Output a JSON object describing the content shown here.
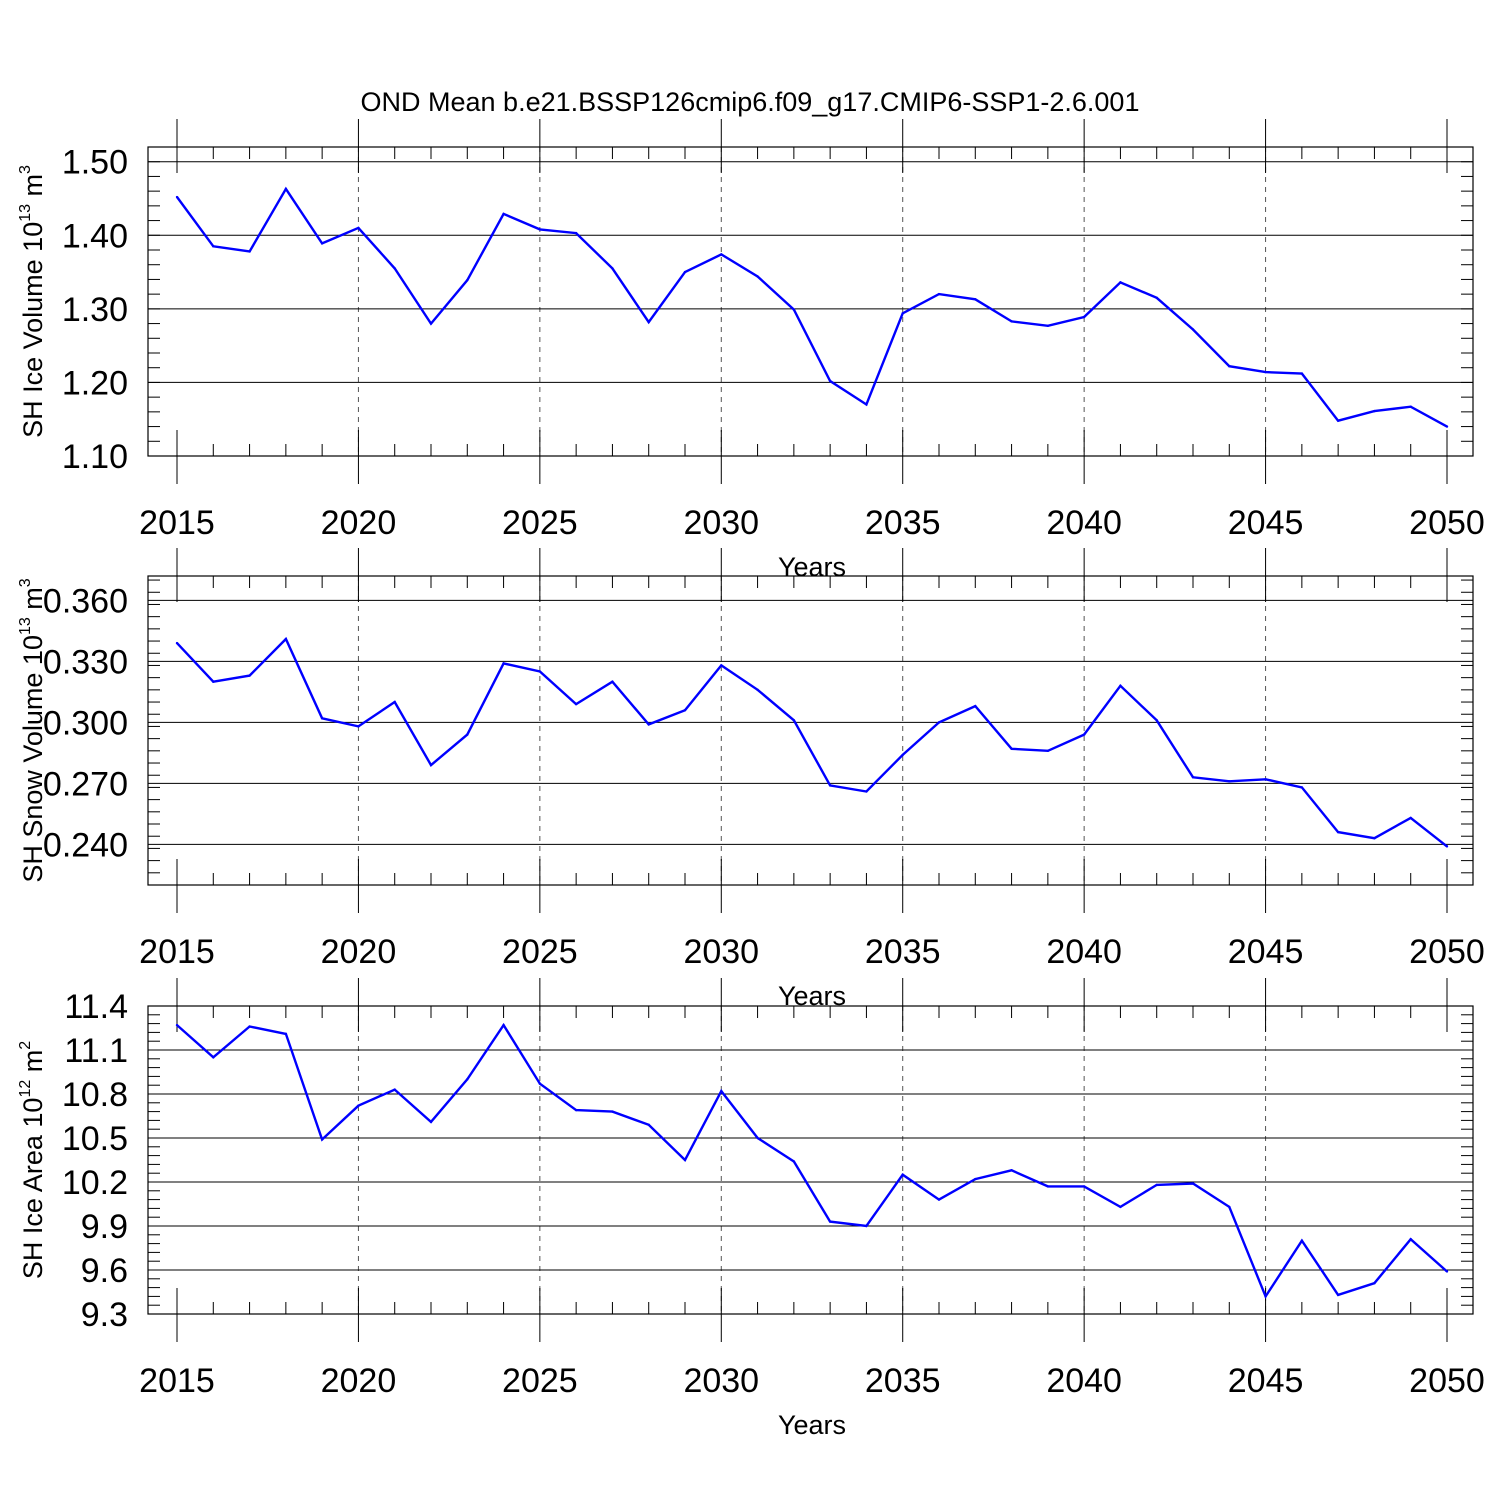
{
  "figure_title": "OND Mean b.e21.BSSP126cmip6.f09_g17.CMIP6-SSP1-2.6.001",
  "colors": {
    "line": "#0000ff",
    "axis": "#000000",
    "grid": "#555555"
  },
  "chart_data": [
    {
      "type": "line",
      "title": "OND Mean b.e21.BSSP126cmip6.f09_g17.CMIP6-SSP1-2.6.001",
      "xlabel": "Years",
      "ylabel": {
        "text": "SH Ice Volume 10",
        "exp": "13",
        "unit": " m",
        "unit_exp": "3"
      },
      "xlim": [
        2015,
        2050
      ],
      "ylim": [
        1.1,
        1.52
      ],
      "xticks": [
        2015,
        2020,
        2025,
        2030,
        2035,
        2040,
        2045,
        2050
      ],
      "xtick_labels": [
        "2015",
        "2020",
        "2025",
        "2030",
        "2035",
        "2040",
        "2045",
        "2050"
      ],
      "yticks": [
        1.1,
        1.2,
        1.3,
        1.4,
        1.5
      ],
      "ytick_labels": [
        "1.10",
        "1.20",
        "1.30",
        "1.40",
        "1.50"
      ],
      "vertical_grid": true,
      "x": [
        2015,
        2016,
        2017,
        2018,
        2019,
        2020,
        2021,
        2022,
        2023,
        2024,
        2025,
        2026,
        2027,
        2028,
        2029,
        2030,
        2031,
        2032,
        2033,
        2034,
        2035,
        2036,
        2037,
        2038,
        2039,
        2040,
        2041,
        2042,
        2043,
        2044,
        2045,
        2046,
        2047,
        2048,
        2049,
        2050
      ],
      "values": [
        1.452,
        1.385,
        1.378,
        1.463,
        1.389,
        1.41,
        1.355,
        1.28,
        1.339,
        1.429,
        1.408,
        1.403,
        1.355,
        1.282,
        1.35,
        1.374,
        1.344,
        1.299,
        1.202,
        1.17,
        1.294,
        1.32,
        1.313,
        1.283,
        1.277,
        1.289,
        1.336,
        1.315,
        1.272,
        1.222,
        1.214,
        1.212,
        1.148,
        1.161,
        1.167,
        1.14
      ]
    },
    {
      "type": "line",
      "xlabel": "Years",
      "ylabel": {
        "text": "SH Snow Volume 10",
        "exp": "13",
        "unit": " m",
        "unit_exp": "3"
      },
      "xlim": [
        2015,
        2050
      ],
      "ylim": [
        0.22,
        0.372
      ],
      "xticks": [
        2015,
        2020,
        2025,
        2030,
        2035,
        2040,
        2045,
        2050
      ],
      "xtick_labels": [
        "2015",
        "2020",
        "2025",
        "2030",
        "2035",
        "2040",
        "2045",
        "2050"
      ],
      "yticks": [
        0.24,
        0.27,
        0.3,
        0.33,
        0.36
      ],
      "ytick_labels": [
        "0.240",
        "0.270",
        "0.300",
        "0.330",
        "0.360"
      ],
      "vertical_grid": true,
      "x": [
        2015,
        2016,
        2017,
        2018,
        2019,
        2020,
        2021,
        2022,
        2023,
        2024,
        2025,
        2026,
        2027,
        2028,
        2029,
        2030,
        2031,
        2032,
        2033,
        2034,
        2035,
        2036,
        2037,
        2038,
        2039,
        2040,
        2041,
        2042,
        2043,
        2044,
        2045,
        2046,
        2047,
        2048,
        2049,
        2050
      ],
      "values": [
        0.339,
        0.32,
        0.323,
        0.341,
        0.302,
        0.298,
        0.31,
        0.279,
        0.294,
        0.329,
        0.325,
        0.309,
        0.32,
        0.299,
        0.306,
        0.328,
        0.316,
        0.301,
        0.269,
        0.266,
        0.284,
        0.3,
        0.308,
        0.287,
        0.286,
        0.294,
        0.318,
        0.301,
        0.273,
        0.271,
        0.272,
        0.268,
        0.246,
        0.243,
        0.253,
        0.239
      ]
    },
    {
      "type": "line",
      "xlabel": "Years",
      "ylabel": {
        "text": "SH Ice Area 10",
        "exp": "12",
        "unit": " m",
        "unit_exp": "2"
      },
      "xlim": [
        2015,
        2050
      ],
      "ylim": [
        9.3,
        11.4
      ],
      "xticks": [
        2015,
        2020,
        2025,
        2030,
        2035,
        2040,
        2045,
        2050
      ],
      "xtick_labels": [
        "2015",
        "2020",
        "2025",
        "2030",
        "2035",
        "2040",
        "2045",
        "2050"
      ],
      "yticks": [
        9.3,
        9.6,
        9.9,
        10.2,
        10.5,
        10.8,
        11.1,
        11.4
      ],
      "ytick_labels": [
        "9.3",
        "9.6",
        "9.9",
        "10.2",
        "10.5",
        "10.8",
        "11.1",
        "11.4"
      ],
      "vertical_grid": true,
      "x": [
        2015,
        2016,
        2017,
        2018,
        2019,
        2020,
        2021,
        2022,
        2023,
        2024,
        2025,
        2026,
        2027,
        2028,
        2029,
        2030,
        2031,
        2032,
        2033,
        2034,
        2035,
        2036,
        2037,
        2038,
        2039,
        2040,
        2041,
        2042,
        2043,
        2044,
        2045,
        2046,
        2047,
        2048,
        2049,
        2050
      ],
      "values": [
        11.27,
        11.05,
        11.26,
        11.21,
        10.49,
        10.72,
        10.83,
        10.61,
        10.9,
        11.27,
        10.87,
        10.69,
        10.68,
        10.59,
        10.35,
        10.82,
        10.5,
        10.34,
        9.93,
        9.9,
        10.25,
        10.08,
        10.22,
        10.28,
        10.17,
        10.17,
        10.03,
        10.18,
        10.19,
        10.03,
        9.42,
        9.8,
        9.43,
        9.51,
        9.81,
        9.59
      ]
    }
  ]
}
